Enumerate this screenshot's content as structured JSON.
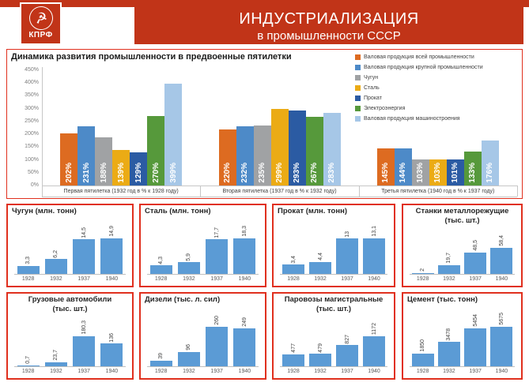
{
  "header": {
    "logo_text": "КПРФ",
    "title": "ИНДУСТРИАЛИЗАЦИЯ",
    "subtitle": "в промышленности СССР"
  },
  "colors": {
    "banner_red": "#C13418",
    "border_red": "#E0301E",
    "bar_blue": "#5B9BD5"
  },
  "chart_data": [
    {
      "type": "bar",
      "title": "Динамика развития промышленности в предвоенные пятилетки",
      "categories": [
        "Первая пятилетка (1932 год в % к 1928 году)",
        "Вторая пятилетка (1937 год в % к 1932 году)",
        "Третья пятилетка (1940 год в % к 1937 году)"
      ],
      "series": [
        {
          "name": "Валовая продукция всей промышленности",
          "color": "#DD6B21",
          "values": [
            202,
            220,
            145
          ]
        },
        {
          "name": "Валовая продукция крупной промышленности",
          "color": "#4D8AC8",
          "values": [
            231,
            232,
            144
          ]
        },
        {
          "name": "Чугун",
          "color": "#A0A2A4",
          "values": [
            188,
            235,
            103
          ]
        },
        {
          "name": "Сталь",
          "color": "#EBAB15",
          "values": [
            139,
            299,
            103
          ]
        },
        {
          "name": "Прокат",
          "color": "#2B5BA3",
          "values": [
            129,
            293,
            101
          ]
        },
        {
          "name": "Электроэнергия",
          "color": "#56993B",
          "values": [
            270,
            267,
            133
          ]
        },
        {
          "name": "Валовая продукция машиностроения",
          "color": "#A6C7E7",
          "values": [
            399,
            283,
            176
          ]
        }
      ],
      "value_suffix": "%",
      "xlabel": "",
      "ylabel": "",
      "ylim": [
        0,
        450
      ],
      "ytick_step": 50,
      "grid": false,
      "legend_position": "inside-top-right"
    },
    {
      "type": "bar",
      "title": "Чугун (млн. тонн)",
      "categories": [
        "1928",
        "1932",
        "1937",
        "1940"
      ],
      "values": [
        3.3,
        6.2,
        14.5,
        14.9
      ],
      "labels": [
        "3,3",
        "6,2",
        "14,5",
        "14,9"
      ]
    },
    {
      "type": "bar",
      "title": "Сталь (млн. тонн)",
      "categories": [
        "1928",
        "1932",
        "1937",
        "1940"
      ],
      "values": [
        4.3,
        5.9,
        17.7,
        18.3
      ],
      "labels": [
        "4,3",
        "5,9",
        "17,7",
        "18,3"
      ]
    },
    {
      "type": "bar",
      "title": "Прокат (млн. тонн)",
      "categories": [
        "1928",
        "1932",
        "1937",
        "1940"
      ],
      "values": [
        3.4,
        4.4,
        13,
        13.1
      ],
      "labels": [
        "3,4",
        "4,4",
        "13",
        "13,1"
      ]
    },
    {
      "type": "bar",
      "title": "Станки металлорежущие",
      "title2": "(тыс. шт.)",
      "categories": [
        "1928",
        "1932",
        "1937",
        "1940"
      ],
      "values": [
        2,
        19.7,
        48.5,
        58.4
      ],
      "labels": [
        "2",
        "19,7",
        "48,5",
        "58,4"
      ]
    },
    {
      "type": "bar",
      "title": "Грузовые автомобили",
      "title2": "(тыс. шт.)",
      "categories": [
        "1928",
        "1932",
        "1937",
        "1940"
      ],
      "values": [
        0.7,
        23.7,
        180.3,
        136
      ],
      "labels": [
        "0,7",
        "23,7",
        "180,3",
        "136"
      ]
    },
    {
      "type": "bar",
      "title": "Дизели (тыс. л. сил)",
      "categories": [
        "1928",
        "1932",
        "1937",
        "1940"
      ],
      "values": [
        39,
        96,
        260,
        249
      ],
      "labels": [
        "39",
        "96",
        "260",
        "249"
      ]
    },
    {
      "type": "bar",
      "title": "Паровозы магистральные",
      "title2": "(тыс. шт.)",
      "categories": [
        "1928",
        "1932",
        "1937",
        "1940"
      ],
      "values": [
        477,
        479,
        827,
        1172
      ],
      "labels": [
        "477",
        "479",
        "827",
        "1172"
      ]
    },
    {
      "type": "bar",
      "title": "Цемент (тыс. тонн)",
      "categories": [
        "1928",
        "1932",
        "1937",
        "1940"
      ],
      "values": [
        1850,
        3478,
        5454,
        5675
      ],
      "labels": [
        "1850",
        "3478",
        "5454",
        "5675"
      ]
    }
  ]
}
